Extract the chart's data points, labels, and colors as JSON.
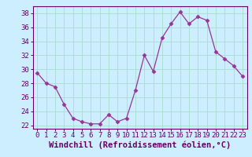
{
  "x": [
    0,
    1,
    2,
    3,
    4,
    5,
    6,
    7,
    8,
    9,
    10,
    11,
    12,
    13,
    14,
    15,
    16,
    17,
    18,
    19,
    20,
    21,
    22,
    23
  ],
  "y": [
    29.5,
    28.0,
    27.5,
    25.0,
    23.0,
    22.5,
    22.2,
    22.2,
    23.5,
    22.5,
    23.0,
    27.0,
    32.0,
    29.7,
    34.5,
    36.5,
    38.2,
    36.5,
    37.5,
    37.0,
    32.5,
    31.5,
    30.5,
    29.0
  ],
  "line_color": "#993399",
  "marker": "D",
  "marker_size": 2.5,
  "bg_color": "#cceeff",
  "grid_color": "#aaddcc",
  "xlabel": "Windchill (Refroidissement éolien,°C)",
  "ylim": [
    21.5,
    39.0
  ],
  "xlim": [
    -0.5,
    23.5
  ],
  "yticks": [
    22,
    24,
    26,
    28,
    30,
    32,
    34,
    36,
    38
  ],
  "xticks": [
    0,
    1,
    2,
    3,
    4,
    5,
    6,
    7,
    8,
    9,
    10,
    11,
    12,
    13,
    14,
    15,
    16,
    17,
    18,
    19,
    20,
    21,
    22,
    23
  ],
  "tick_label_fontsize": 6.5,
  "xlabel_fontsize": 7.5,
  "line_color_spine": "#660066",
  "tick_color": "#660066"
}
